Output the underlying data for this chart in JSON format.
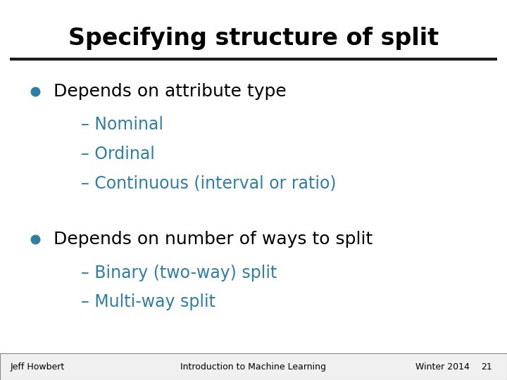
{
  "title": "Specifying structure of split",
  "title_fontsize": 24,
  "title_fontweight": "bold",
  "background_color": "#ffffff",
  "title_bar_color": "#1a1a1a",
  "bullet_color": "#2e7ea6",
  "text_color": "#000000",
  "dash_color": "#2e7ea6",
  "bullet1_text": "Depends on attribute type",
  "bullet1_subs": [
    "– Nominal",
    "– Ordinal",
    "– Continuous (interval or ratio)"
  ],
  "bullet2_text": "Depends on number of ways to split",
  "bullet2_subs": [
    "– Binary (two-way) split",
    "– Multi-way split"
  ],
  "footer_left": "Jeff Howbert",
  "footer_center": "Introduction to Machine Learning",
  "footer_right": "Winter 2014",
  "footer_num": "21",
  "footer_fontsize": 9,
  "main_fontsize": 18,
  "sub_fontsize": 17
}
